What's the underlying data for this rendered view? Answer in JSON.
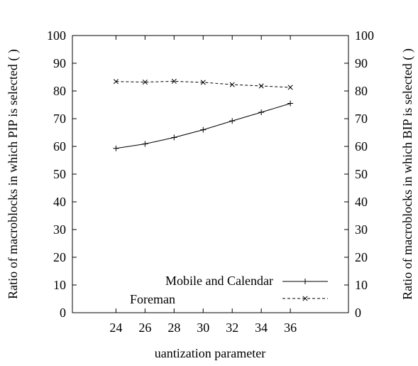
{
  "chart_data": {
    "type": "line",
    "title": "",
    "xlabel": "uantization parameter",
    "ylabel": "Ratio of macroblocks in which PIP is selected ( )",
    "y2label": "Ratio of macroblocks in which BIP is selected ( )",
    "x": [
      24,
      26,
      28,
      30,
      32,
      34,
      36
    ],
    "xticks": [
      "24",
      "26",
      "28",
      "30",
      "32",
      "34",
      "36"
    ],
    "xlim": [
      21,
      40
    ],
    "ylim": [
      0,
      100
    ],
    "yticks": [
      "0",
      "10",
      "20",
      "30",
      "40",
      "50",
      "60",
      "70",
      "80",
      "90",
      "100"
    ],
    "y2ticks": [
      "0",
      "10",
      "20",
      "30",
      "40",
      "50",
      "60",
      "70",
      "80",
      "90",
      "100"
    ],
    "grid": false,
    "legend_position": "bottom-right",
    "series": [
      {
        "name": "Mobile and Calendar",
        "values": [
          59.3,
          60.9,
          63.2,
          66.0,
          69.2,
          72.3,
          75.5
        ],
        "marker": "plus",
        "line": "solid",
        "color": "#000000"
      },
      {
        "name": "Foreman",
        "values": [
          83.4,
          83.2,
          83.5,
          83.1,
          82.3,
          81.8,
          81.3
        ],
        "marker": "x",
        "line": "dashed",
        "color": "#000000"
      }
    ]
  }
}
